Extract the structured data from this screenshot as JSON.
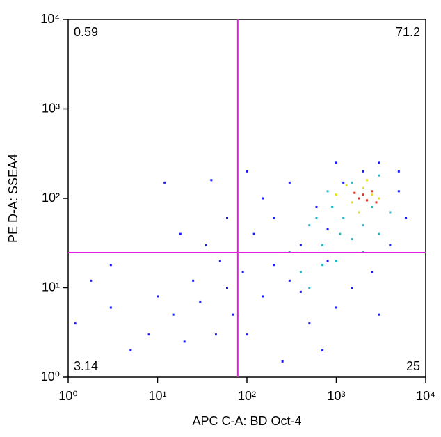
{
  "chart_data": {
    "type": "scatter",
    "x_label": "APC C-A: BD Oct-4",
    "y_label": "PE D-A: SSEA4",
    "xscale": "log",
    "yscale": "log",
    "xlim": [
      1,
      10000
    ],
    "ylim": [
      1,
      10000
    ],
    "xticks": [
      {
        "value": 1,
        "label": "10⁰"
      },
      {
        "value": 10,
        "label": "10¹"
      },
      {
        "value": 100,
        "label": "10²"
      },
      {
        "value": 1000,
        "label": "10³"
      },
      {
        "value": 10000,
        "label": "10⁴"
      }
    ],
    "yticks": [
      {
        "value": 1,
        "label": "10⁰"
      },
      {
        "value": 10,
        "label": "10¹"
      },
      {
        "value": 100,
        "label": "10²"
      },
      {
        "value": 1000,
        "label": "10³"
      },
      {
        "value": 10000,
        "label": "10⁴"
      }
    ],
    "gate_x": 79,
    "gate_y": 24.7,
    "gate_color": "#e020e0",
    "quadrants": {
      "upper_left": 0.59,
      "upper_right": 71.2,
      "lower_left": 3.14,
      "lower_right": 25
    },
    "series": [
      {
        "color": "#1a1aff",
        "x": [
          1.2,
          1.8,
          3,
          3,
          5,
          8,
          10,
          12,
          15,
          20,
          25,
          30,
          40,
          45,
          50,
          60,
          70,
          90,
          100,
          120,
          150,
          200,
          250,
          300,
          400,
          500,
          600,
          800,
          1000,
          1200,
          1500,
          2000,
          2500,
          3000,
          4000,
          5000,
          6000,
          150,
          300,
          700,
          3000,
          60,
          200,
          400,
          800,
          5000,
          1000,
          100,
          35,
          18
        ],
        "y": [
          4,
          12,
          6,
          18,
          2,
          3,
          8,
          150,
          5,
          2.5,
          12,
          7,
          160,
          3,
          20,
          10,
          5,
          15,
          3,
          40,
          8,
          60,
          1.5,
          12,
          30,
          4,
          80,
          20,
          6,
          150,
          10,
          200,
          15,
          250,
          30,
          200,
          60,
          100,
          150,
          2,
          5,
          60,
          18,
          9,
          45,
          120,
          250,
          200,
          30,
          40
        ]
      },
      {
        "color": "#20b8c8",
        "x": [
          300,
          400,
          500,
          700,
          900,
          1000,
          1200,
          1500,
          2000,
          2500,
          3000,
          4000,
          600,
          800,
          1500,
          3000,
          2000,
          500,
          700,
          1100
        ],
        "y": [
          25,
          15,
          50,
          30,
          80,
          20,
          60,
          35,
          50,
          80,
          40,
          70,
          60,
          120,
          150,
          180,
          25,
          10,
          18,
          40
        ]
      },
      {
        "color": "#e0e020",
        "x": [
          1000,
          1500,
          2000,
          2500,
          3000,
          1800,
          2200,
          1300
        ],
        "y": [
          110,
          90,
          130,
          110,
          100,
          70,
          160,
          140
        ]
      },
      {
        "color": "#e83020",
        "x": [
          1800,
          2200,
          2500,
          2000,
          1600,
          2800
        ],
        "y": [
          100,
          95,
          120,
          110,
          115,
          90
        ]
      }
    ]
  }
}
